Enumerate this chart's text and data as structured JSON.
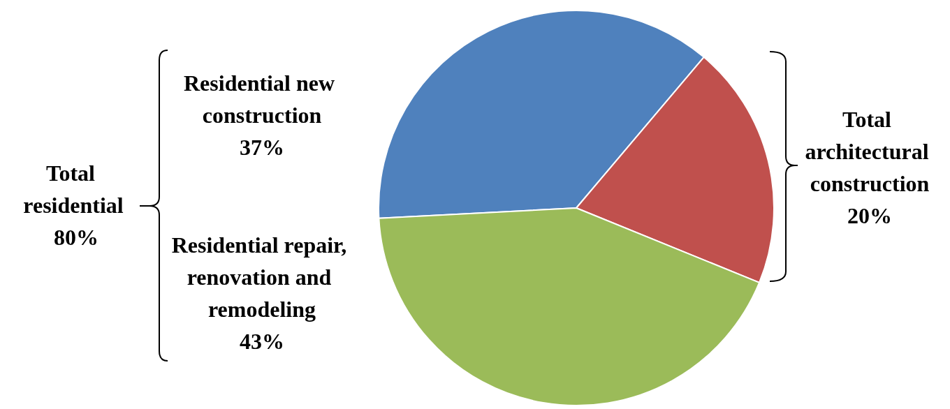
{
  "chart_data": {
    "type": "pie",
    "categories": [
      "Residential new construction",
      "Total architectural construction",
      "Residential repair, renovation and remodeling"
    ],
    "values": [
      37,
      20,
      43
    ],
    "value_labels": [
      "37%",
      "20%",
      "43%"
    ],
    "colors": [
      "#4f81bd",
      "#c0504d",
      "#9bbb59"
    ],
    "annotations": [
      "Total residential 80%"
    ],
    "legend": false
  }
}
